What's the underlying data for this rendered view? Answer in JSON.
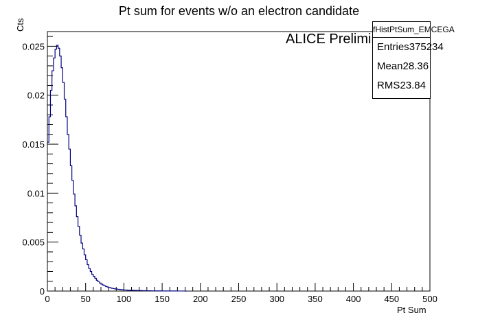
{
  "chart_data": {
    "type": "histogram",
    "title": "Pt sum for events w/o an electron candidate",
    "annotation": "ALICE Preliminary",
    "xlabel": "Pt Sum",
    "ylabel": "Cts",
    "xlim": [
      0,
      500
    ],
    "ylim": [
      0,
      0.0265
    ],
    "x_ticks": [
      "0",
      "50",
      "100",
      "150",
      "200",
      "250",
      "300",
      "350",
      "400",
      "450",
      "500"
    ],
    "y_ticks": [
      "0",
      "0.005",
      "0.01",
      "0.015",
      "0.02",
      "0.025"
    ],
    "line_color": "#00007f",
    "bin_width": 2,
    "series": [
      {
        "x": [
          0,
          2,
          4,
          6,
          8,
          10,
          12,
          14,
          16,
          18,
          20,
          22,
          24,
          26,
          28,
          30,
          32,
          34,
          36,
          38,
          40,
          42,
          44,
          46,
          48,
          50,
          52,
          54,
          56,
          58,
          60,
          62,
          64,
          66,
          68,
          70,
          72,
          74,
          76,
          78,
          80,
          82,
          84,
          86,
          88,
          90,
          92,
          94,
          96,
          98,
          100,
          104,
          108,
          112,
          116,
          120,
          124,
          128,
          132,
          136,
          140,
          150,
          160,
          170,
          180
        ],
        "values": [
          0.0152,
          0.0178,
          0.0205,
          0.0225,
          0.0238,
          0.0247,
          0.0251,
          0.0248,
          0.024,
          0.0228,
          0.0213,
          0.0196,
          0.0178,
          0.016,
          0.0145,
          0.0128,
          0.0113,
          0.0099,
          0.0087,
          0.0076,
          0.0066,
          0.0057,
          0.0049,
          0.0043,
          0.0037,
          0.0032,
          0.0027,
          0.0023,
          0.002,
          0.0017,
          0.0015,
          0.0013,
          0.0011,
          0.00095,
          0.00082,
          0.00071,
          0.00062,
          0.00054,
          0.00047,
          0.00041,
          0.00036,
          0.00032,
          0.00028,
          0.00025,
          0.00022,
          0.0002,
          0.00018,
          0.00016,
          0.00014,
          0.00013,
          0.00011,
          9e-05,
          8e-05,
          7e-05,
          6e-05,
          5e-05,
          4e-05,
          3e-05,
          3e-05,
          2e-05,
          2e-05,
          1e-05,
          1e-05,
          5e-06,
          0.0
        ]
      }
    ]
  },
  "stats_box": {
    "name": "fHistPtSum_EMCEGA",
    "rows": [
      {
        "label": "Entries",
        "value": "375234"
      },
      {
        "label": "Mean",
        "value": "28.36"
      },
      {
        "label": "RMS",
        "value": "23.84"
      }
    ]
  }
}
